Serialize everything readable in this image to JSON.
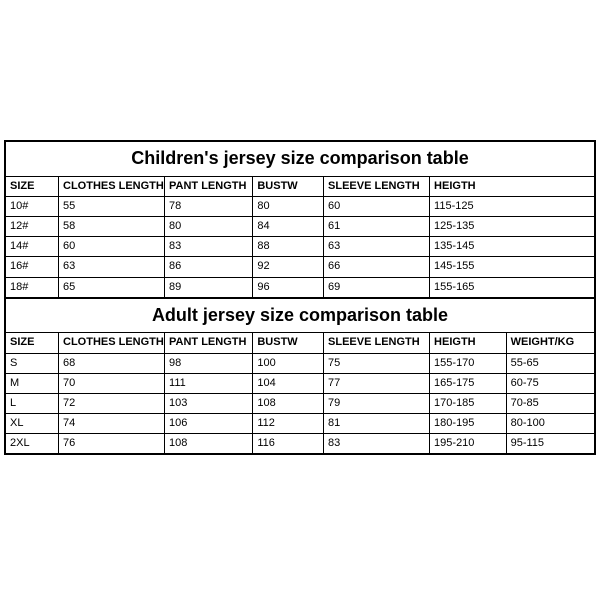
{
  "children": {
    "title": "Children's jersey size comparison table",
    "columns": [
      "SIZE",
      "CLOTHES LENGTH",
      "PANT LENGTH",
      "BUSTW",
      "SLEEVE LENGTH",
      "HEIGTH"
    ],
    "rows": [
      [
        "10#",
        "55",
        "78",
        "80",
        "60",
        "115-125"
      ],
      [
        "12#",
        "58",
        "80",
        "84",
        "61",
        "125-135"
      ],
      [
        "14#",
        "60",
        "83",
        "88",
        "63",
        "135-145"
      ],
      [
        "16#",
        "63",
        "86",
        "92",
        "66",
        "145-155"
      ],
      [
        "18#",
        "65",
        "89",
        "96",
        "69",
        "155-165"
      ]
    ]
  },
  "adult": {
    "title": "Adult jersey size comparison table",
    "columns": [
      "SIZE",
      "CLOTHES LENGTH",
      "PANT LENGTH",
      "BUSTW",
      "SLEEVE LENGTH",
      "HEIGTH",
      "WEIGHT/KG"
    ],
    "rows": [
      [
        "S",
        "68",
        "98",
        "100",
        "75",
        "155-170",
        "55-65"
      ],
      [
        "M",
        "70",
        "111",
        "104",
        "77",
        "165-175",
        "60-75"
      ],
      [
        "L",
        "72",
        "103",
        "108",
        "79",
        "170-185",
        "70-85"
      ],
      [
        "XL",
        "74",
        "106",
        "112",
        "81",
        "180-195",
        "80-100"
      ],
      [
        "2XL",
        "76",
        "108",
        "116",
        "83",
        "195-210",
        "95-115"
      ]
    ]
  },
  "style": {
    "border_color": "#000000",
    "background_color": "#ffffff",
    "title_fontsize_pt": 18,
    "cell_fontsize_pt": 11,
    "font_family": "Arial"
  }
}
